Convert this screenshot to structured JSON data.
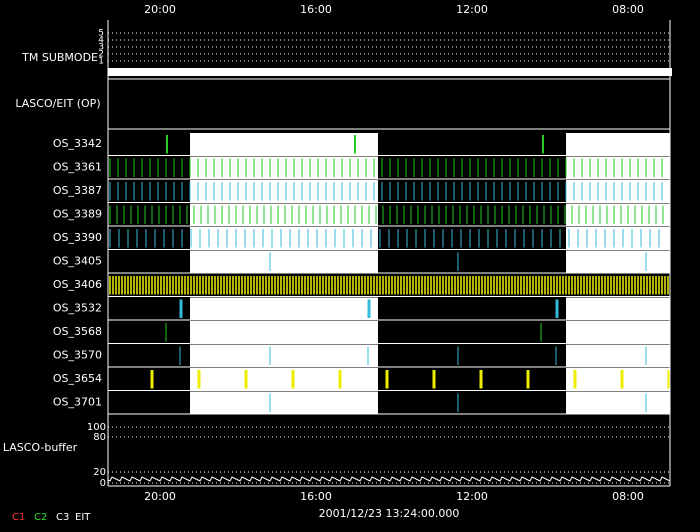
{
  "time_labels": [
    "20:00",
    "16:00",
    "12:00",
    "08:00"
  ],
  "submode": {
    "label": "TM SUBMODE",
    "ticks": [
      "5",
      "4",
      "3",
      "2",
      "1"
    ]
  },
  "lasco_eit": {
    "label": "LASCO/EIT (OP)"
  },
  "rows": [
    "OS_3342",
    "OS_3361",
    "OS_3387",
    "OS_3389",
    "OS_3390",
    "OS_3405",
    "OS_3406",
    "OS_3532",
    "OS_3568",
    "OS_3570",
    "OS_3654",
    "OS_3701"
  ],
  "buffer": {
    "label": "LASCO-buffer",
    "ticks": [
      "100",
      "80",
      "20",
      "0"
    ]
  },
  "timestamp": "2001/12/23 13:24:00.000",
  "legend": [
    "C1",
    "C2",
    "C3",
    "EIT"
  ]
}
